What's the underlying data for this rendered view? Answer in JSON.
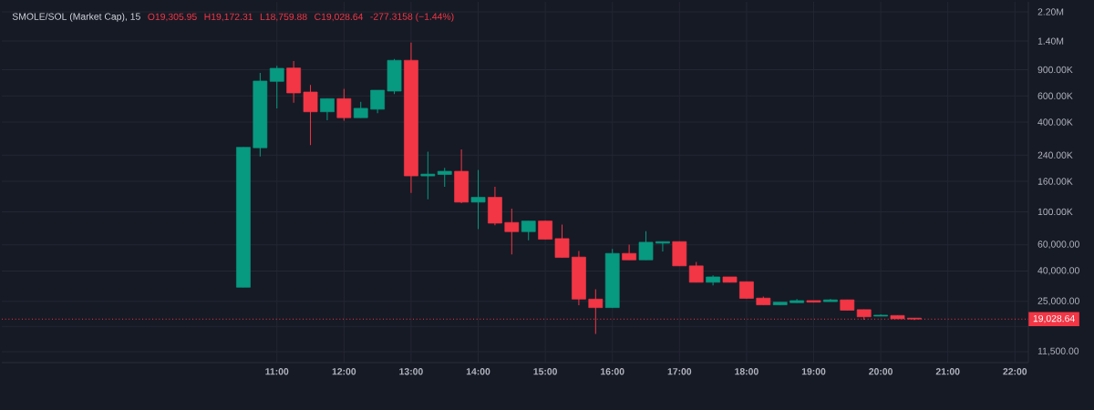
{
  "chart_data": {
    "type": "candlestick",
    "title": "SMOLE/SOL (Market Cap), 15",
    "annotations": [
      "O19,305.95",
      "H19,172.31",
      "L18,759.88",
      "C19,028.64",
      "-277.3158 (−1.44%)"
    ],
    "x": [
      10.5,
      10.75,
      11,
      11.25,
      11.5,
      11.75,
      12,
      12.25,
      12.5,
      12.75,
      13,
      13.25,
      13.5,
      13.75,
      14,
      14.25,
      14.5,
      14.75,
      15,
      15.25,
      15.5,
      15.75,
      16,
      16.25,
      16.5,
      16.75,
      17,
      17.25,
      17.5,
      17.75,
      18,
      18.25,
      18.5,
      18.75,
      19,
      19.25,
      19.5,
      19.75,
      20,
      20.25,
      20.5
    ],
    "ohlc": [
      [
        31100,
        271000,
        31100,
        271000
      ],
      [
        269000,
        856000,
        235000,
        755000
      ],
      [
        751000,
        954000,
        495000,
        919000
      ],
      [
        923000,
        1030000,
        540000,
        628000
      ],
      [
        637000,
        710000,
        280000,
        469000
      ],
      [
        469000,
        575000,
        412000,
        575000
      ],
      [
        575000,
        668000,
        408000,
        428000
      ],
      [
        428000,
        548000,
        428000,
        495000
      ],
      [
        488000,
        655000,
        459000,
        655000
      ],
      [
        646000,
        1060000,
        617000,
        1040000
      ],
      [
        1040000,
        1370000,
        134000,
        174000
      ],
      [
        174000,
        253000,
        121000,
        179000
      ],
      [
        178000,
        197000,
        147000,
        187000
      ],
      [
        187000,
        262000,
        114000,
        116000
      ],
      [
        116000,
        191000,
        76300,
        125000
      ],
      [
        125000,
        147000,
        81200,
        83800
      ],
      [
        84700,
        105000,
        51700,
        73500
      ],
      [
        73500,
        86600,
        64200,
        86600
      ],
      [
        86600,
        86600,
        65400,
        65400
      ],
      [
        66000,
        81900,
        49300,
        49300
      ],
      [
        49600,
        54400,
        23600,
        25900
      ],
      [
        25900,
        30100,
        15100,
        22700
      ],
      [
        22700,
        56300,
        22700,
        52500
      ],
      [
        52500,
        60100,
        47500,
        47500
      ],
      [
        47500,
        73900,
        47500,
        62400
      ],
      [
        61500,
        63000,
        54200,
        63000
      ],
      [
        63000,
        63000,
        43300,
        43300
      ],
      [
        43300,
        46000,
        33600,
        33600
      ],
      [
        33600,
        37400,
        32000,
        36500
      ],
      [
        36500,
        36500,
        33600,
        33600
      ],
      [
        33900,
        33900,
        26200,
        26200
      ],
      [
        26300,
        26900,
        23700,
        23700
      ],
      [
        23700,
        24700,
        23700,
        24700
      ],
      [
        24500,
        25900,
        24500,
        25300
      ],
      [
        25300,
        25300,
        24700,
        24700
      ],
      [
        24900,
        25900,
        24900,
        25600
      ],
      [
        25600,
        25600,
        21800,
        21800
      ],
      [
        22000,
        22000,
        18800,
        19700
      ],
      [
        19900,
        20500,
        19900,
        20200
      ],
      [
        20100,
        20100,
        19100,
        19100
      ],
      [
        19305.95,
        19305.95,
        18759.88,
        19028.64
      ]
    ],
    "colors": [
      "#089981",
      "#089981",
      "#089981",
      "#f23645",
      "#f23645",
      "#089981",
      "#f23645",
      "#089981",
      "#089981",
      "#089981",
      "#f23645",
      "#089981",
      "#089981",
      "#f23645",
      "#089981",
      "#f23645",
      "#f23645",
      "#089981",
      "#f23645",
      "#f23645",
      "#f23645",
      "#f23645",
      "#089981",
      "#f23645",
      "#089981",
      "#089981",
      "#f23645",
      "#f23645",
      "#089981",
      "#f23645",
      "#f23645",
      "#f23645",
      "#089981",
      "#089981",
      "#f23645",
      "#089981",
      "#f23645",
      "#f23645",
      "#089981",
      "#f23645",
      "#f23645"
    ],
    "xlim": [
      6.9,
      22.2
    ],
    "xticks": [
      {
        "value": 11,
        "label": "11:00"
      },
      {
        "value": 12,
        "label": "12:00"
      },
      {
        "value": 13,
        "label": "13:00"
      },
      {
        "value": 14,
        "label": "14:00"
      },
      {
        "value": 15,
        "label": "15:00"
      },
      {
        "value": 16,
        "label": "16:00"
      },
      {
        "value": 17,
        "label": "17:00"
      },
      {
        "value": 18,
        "label": "18:00"
      },
      {
        "value": 19,
        "label": "19:00"
      },
      {
        "value": 20,
        "label": "20:00"
      },
      {
        "value": 21,
        "label": "21:00"
      },
      {
        "value": 22,
        "label": "22:00"
      }
    ],
    "ylim": [
      9700,
      2570000
    ],
    "yticks": [
      {
        "value": 11500,
        "label": "11,500.00"
      },
      {
        "value": 17000,
        "label": null
      },
      {
        "value": 25000,
        "label": "25,000.00"
      },
      {
        "value": 40000,
        "label": "40,000.00"
      },
      {
        "value": 60000,
        "label": "60,000.00"
      },
      {
        "value": 100000,
        "label": "100.00K"
      },
      {
        "value": 160000,
        "label": "160.00K"
      },
      {
        "value": 240000,
        "label": "240.00K"
      },
      {
        "value": 400000,
        "label": "400.00K"
      },
      {
        "value": 600000,
        "label": "600.00K"
      },
      {
        "value": 900000,
        "label": "900.00K"
      },
      {
        "value": 1400000,
        "label": "1.40M"
      },
      {
        "value": 2200000,
        "label": "2.20M"
      }
    ],
    "log": true,
    "grid": true,
    "ref_lines": [
      {
        "axis": "y",
        "value": 19028.64,
        "label": "19,028.64",
        "color": "#f23645",
        "line_style": "dotted"
      }
    ]
  }
}
